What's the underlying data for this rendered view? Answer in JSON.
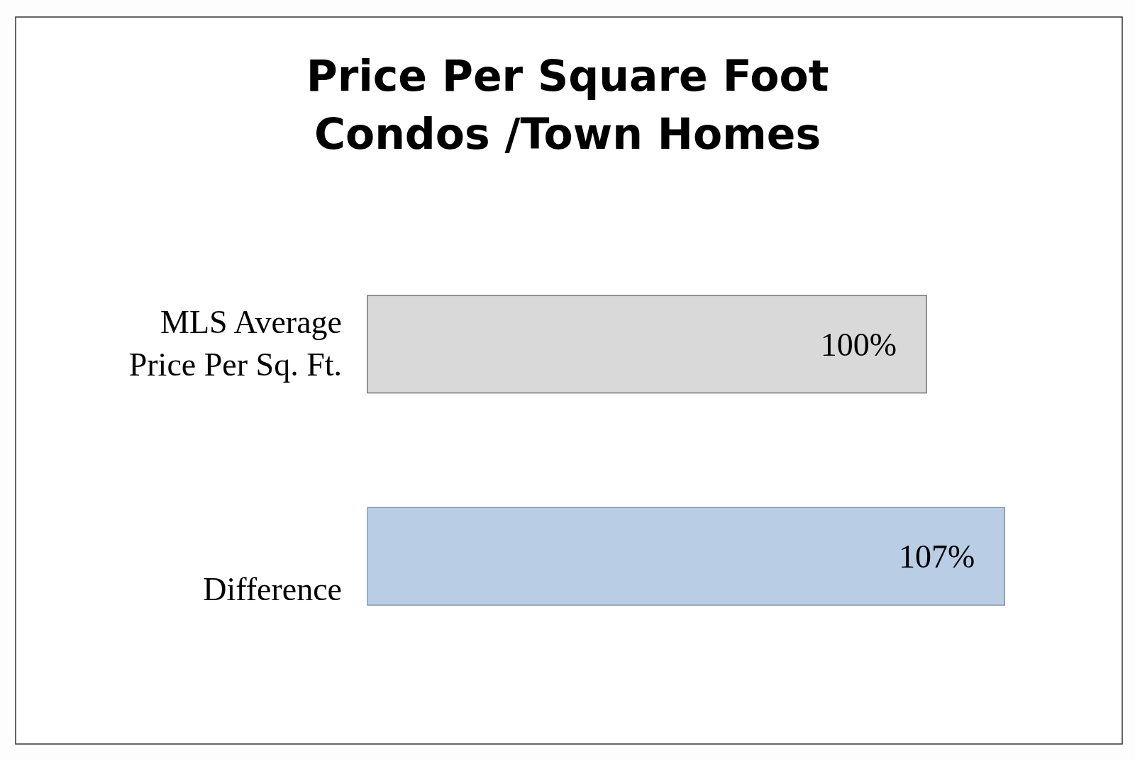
{
  "chart_data": {
    "type": "bar",
    "orientation": "horizontal",
    "title": "Price Per Square Foot",
    "subtitle": "Condos /Town Homes",
    "categories": [
      "MLS Average Price Per Sq. Ft.",
      "Difference"
    ],
    "values": [
      100,
      107
    ],
    "value_labels": [
      "100%",
      "107%"
    ],
    "colors": [
      "#d9d9d9",
      "#b9cde5"
    ],
    "xlim": [
      50,
      107
    ],
    "tick_labels": "y"
  }
}
